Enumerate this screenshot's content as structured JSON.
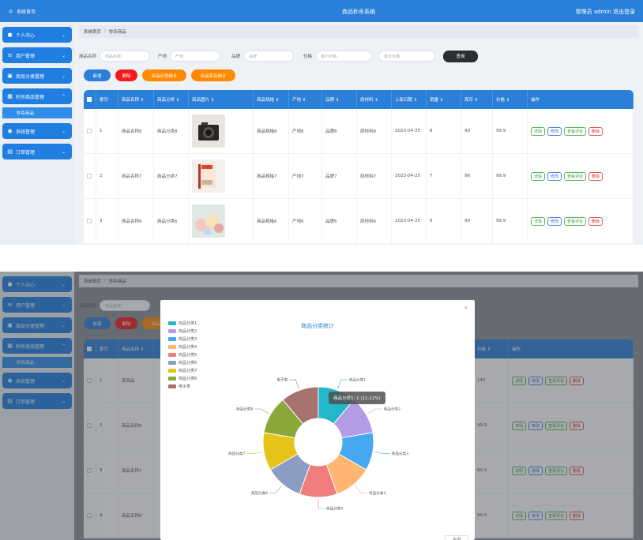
{
  "app_title": "商品秒杀系统",
  "user_info": "管理员 admin  退出登录",
  "sidebar": {
    "home": "系统首页",
    "items": [
      {
        "label": "个人中心",
        "icon": "user-icon"
      },
      {
        "label": "用户管理",
        "icon": "list-icon"
      },
      {
        "label": "商品分类管理",
        "icon": "folder-icon"
      },
      {
        "label": "秒杀商品管理",
        "icon": "grid-icon"
      },
      {
        "label": "系统管理",
        "icon": "db-icon"
      },
      {
        "label": "订单管理",
        "icon": "doc-icon"
      }
    ],
    "sub_item": "秒杀商品"
  },
  "breadcrumb": {
    "home": "系统首页",
    "sep": "/",
    "current": "秒杀商品"
  },
  "search": {
    "name_label": "商品名称",
    "name_ph": "商品名称",
    "origin_label": "产地",
    "origin_ph": "产地",
    "brand_label": "品牌",
    "brand_ph": "品牌",
    "price_label": "价格",
    "min_ph": "最小价格",
    "max_ph": "最大价格",
    "query": "查询"
  },
  "actions": {
    "add": "新增",
    "delete": "删除",
    "stat1": "商品分类统计",
    "stat2": "商品库存统计"
  },
  "table": {
    "headers": [
      "索引",
      "商品名称 ⇕",
      "商品分类 ⇕",
      "商品图片 ⇕",
      "商品规格 ⇕",
      "产地 ⇕",
      "品牌 ⇕",
      "原材料 ⇕",
      "上架日期 ⇕",
      "销量 ⇕",
      "库存 ⇕",
      "价格 ⇕",
      "操作"
    ],
    "rows": [
      {
        "idx": "1",
        "name": "商品名称8",
        "cat": "商品分类8",
        "spec": "商品规格8",
        "org": "产地8",
        "brand": "品牌8",
        "raw": "原材料8",
        "date": "2023-04-25",
        "sales": "8",
        "stock": "99",
        "price": "99.9"
      },
      {
        "idx": "2",
        "name": "商品名称7",
        "cat": "商品分类7",
        "spec": "商品规格7",
        "org": "产地7",
        "brand": "品牌7",
        "raw": "原材料7",
        "date": "2023-04-25",
        "sales": "7",
        "stock": "96",
        "price": "99.9"
      },
      {
        "idx": "3",
        "name": "商品名称6",
        "cat": "商品分类6",
        "spec": "商品规格6",
        "org": "产地6",
        "brand": "品牌6",
        "raw": "原材料6",
        "date": "2023-04-25",
        "sales": "6",
        "stock": "99",
        "price": "99.9"
      }
    ],
    "ops": {
      "detail": "详情",
      "edit": "修改",
      "review": "查看评论",
      "del": "删除"
    }
  },
  "shot2": {
    "rows": [
      {
        "idx": "1",
        "name": "某商品",
        "price": "145"
      },
      {
        "idx": "2",
        "name": "商品名称8",
        "price": "99.9"
      },
      {
        "idx": "3",
        "name": "商品名称7",
        "price": "99.9"
      },
      {
        "idx": "4",
        "name": "商品名称6",
        "price": "99.9"
      }
    ],
    "modal_btn": "关闭"
  },
  "chart_data": {
    "type": "pie",
    "title": "商品分类统计",
    "categories": [
      "商品分类1",
      "商品分类2",
      "商品分类3",
      "商品分类4",
      "商品分类5",
      "商品分类6",
      "商品分类7",
      "商品分类8",
      "电子类"
    ],
    "values": [
      1,
      1,
      1,
      1,
      1,
      1,
      1,
      1,
      1
    ],
    "colors": [
      "#22b8c8",
      "#b49be8",
      "#46a8f0",
      "#ffb673",
      "#f07c7c",
      "#8b9dc3",
      "#e6c319",
      "#8aa83a",
      "#a7736e"
    ],
    "tooltip": "商品分类1: 1 (11.12%)",
    "legend": "top-left",
    "donut": true
  }
}
